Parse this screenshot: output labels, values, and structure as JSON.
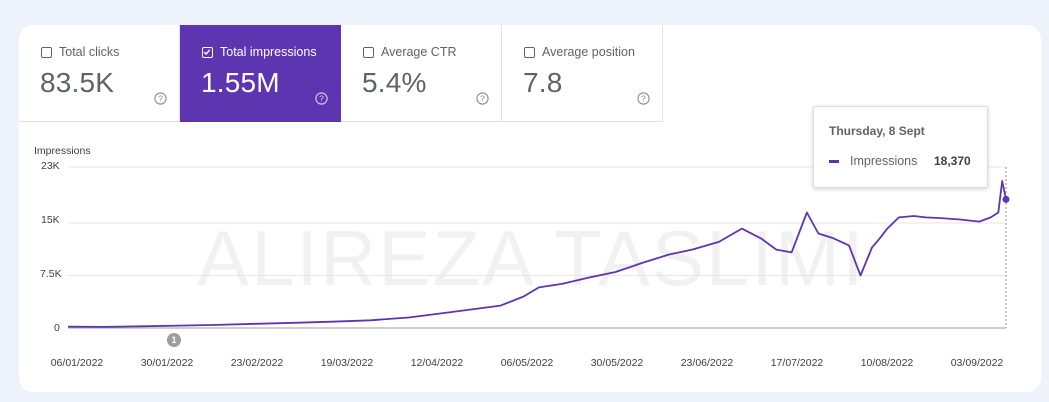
{
  "metrics": [
    {
      "label": "Total clicks",
      "value": "83.5K",
      "checked": false
    },
    {
      "label": "Total impressions",
      "value": "1.55M",
      "checked": true
    },
    {
      "label": "Average CTR",
      "value": "5.4%",
      "checked": false
    },
    {
      "label": "Average position",
      "value": "7.8",
      "checked": false
    }
  ],
  "accent_color": "#5e35b1",
  "watermark": "ALIREZA TASLIMI",
  "tooltip": {
    "date": "Thursday, 8 Sept",
    "series": "Impressions",
    "value": "18,370"
  },
  "annotation": {
    "label": "1"
  },
  "chart_data": {
    "type": "line",
    "ylabel": "Impressions",
    "y_tick_labels": [
      "0",
      "7.5K",
      "15K",
      "23K"
    ],
    "y_ticks": [
      0,
      7500,
      15000,
      23000
    ],
    "ylim": [
      0,
      23000
    ],
    "x_tick_labels": [
      "06/01/2022",
      "30/01/2022",
      "23/02/2022",
      "19/03/2022",
      "12/04/2022",
      "06/05/2022",
      "30/05/2022",
      "23/06/2022",
      "17/07/2022",
      "10/08/2022",
      "03/09/2022"
    ],
    "grid": true,
    "series": [
      {
        "name": "Impressions",
        "x": [
          "2022-01-06",
          "2022-01-15",
          "2022-01-25",
          "2022-02-04",
          "2022-02-14",
          "2022-02-24",
          "2022-03-06",
          "2022-03-16",
          "2022-03-26",
          "2022-04-05",
          "2022-04-15",
          "2022-04-22",
          "2022-04-29",
          "2022-05-05",
          "2022-05-09",
          "2022-05-15",
          "2022-05-22",
          "2022-05-29",
          "2022-06-05",
          "2022-06-12",
          "2022-06-18",
          "2022-06-25",
          "2022-07-01",
          "2022-07-06",
          "2022-07-10",
          "2022-07-14",
          "2022-07-18",
          "2022-07-21",
          "2022-07-25",
          "2022-07-29",
          "2022-08-01",
          "2022-08-04",
          "2022-08-06",
          "2022-08-08",
          "2022-08-11",
          "2022-08-15",
          "2022-08-18",
          "2022-08-22",
          "2022-08-27",
          "2022-09-01",
          "2022-09-04",
          "2022-09-06",
          "2022-09-07",
          "2022-09-08"
        ],
        "values": [
          200,
          150,
          250,
          350,
          450,
          600,
          750,
          900,
          1100,
          1500,
          2200,
          2700,
          3200,
          4500,
          5800,
          6300,
          7200,
          8000,
          9300,
          10500,
          11200,
          12300,
          14200,
          12800,
          11200,
          10800,
          16500,
          13500,
          12800,
          11800,
          7500,
          11500,
          12800,
          14200,
          15800,
          16000,
          15800,
          15700,
          15500,
          15200,
          15800,
          16500,
          21000,
          18370
        ]
      }
    ]
  }
}
